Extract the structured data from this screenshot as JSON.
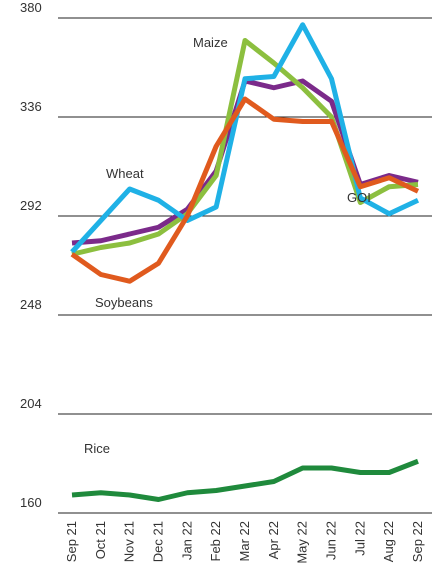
{
  "chart_data": {
    "type": "line",
    "categories": [
      "Sep 21",
      "Oct 21",
      "Nov 21",
      "Dec 21",
      "Jan 22",
      "Feb 22",
      "Mar 22",
      "Apr 22",
      "May 22",
      "Jun 22",
      "Jul 22",
      "Aug 22",
      "Sep 22"
    ],
    "series": [
      {
        "name": "GOI",
        "color": "#7b2a8a",
        "values": [
          280,
          281,
          284,
          287,
          295,
          312,
          352,
          349,
          352,
          343,
          306,
          310,
          307
        ]
      },
      {
        "name": "Maize",
        "color": "#8cbf3f",
        "values": [
          275,
          278,
          280,
          284,
          293,
          310,
          370,
          360,
          349,
          336,
          298,
          305,
          306
        ]
      },
      {
        "name": "Wheat",
        "color": "#1fb1e6",
        "values": [
          276,
          290,
          304,
          299,
          290,
          296,
          353,
          354,
          377,
          353,
          300,
          293,
          299
        ]
      },
      {
        "name": "Soybeans",
        "color": "#e05a1e",
        "values": [
          275,
          266,
          263,
          271,
          292,
          323,
          344,
          335,
          334,
          334,
          305,
          309,
          303
        ]
      },
      {
        "name": "Rice",
        "color": "#1f8a3c",
        "values": [
          168,
          169,
          168,
          166,
          169,
          170,
          172,
          174,
          180,
          180,
          178,
          178,
          183
        ]
      }
    ],
    "ylim": [
      160,
      380
    ],
    "yticks": [
      160,
      204,
      248,
      292,
      336,
      380
    ],
    "grid": true
  }
}
